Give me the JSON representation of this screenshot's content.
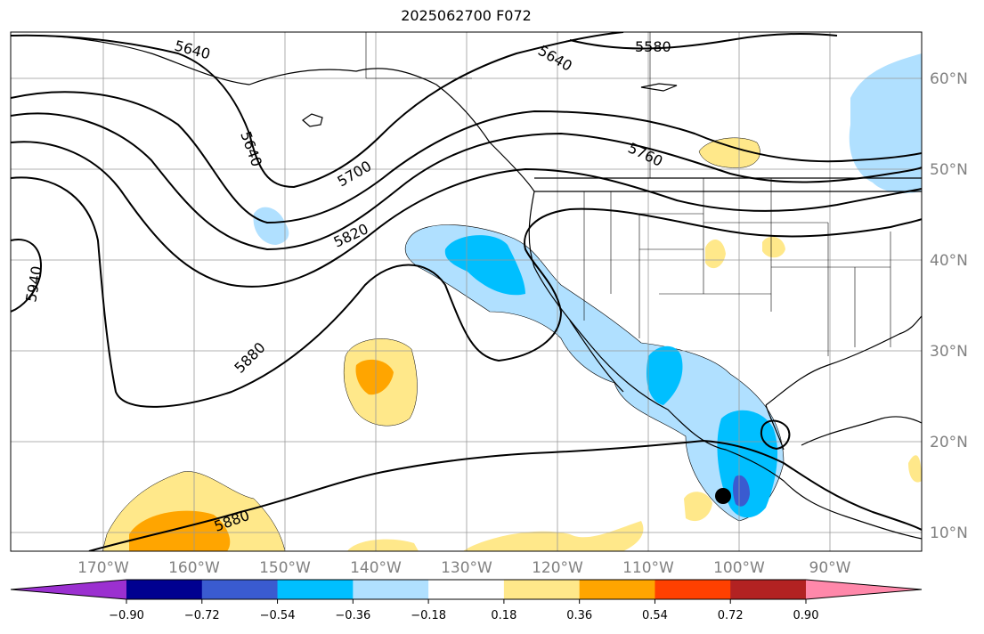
{
  "title": "2025062700 F072",
  "lon_labels": [
    "170°W",
    "160°W",
    "150°W",
    "140°W",
    "130°W",
    "120°W",
    "110°W",
    "100°W",
    "90°W"
  ],
  "lat_labels": [
    "60°N",
    "50°N",
    "40°N",
    "30°N",
    "20°N",
    "10°N"
  ],
  "contour_labels": [
    "5640",
    "5580",
    "5640",
    "5640",
    "5700",
    "5760",
    "5820",
    "5940",
    "5880",
    "5880"
  ],
  "colorbar": {
    "ticks": [
      "−0.90",
      "−0.72",
      "−0.54",
      "−0.36",
      "−0.18",
      "0.18",
      "0.36",
      "0.54",
      "0.72",
      "0.90"
    ],
    "colors": [
      "#9b30d0",
      "#000090",
      "#3a5bd0",
      "#00bfff",
      "#b0e0ff",
      "#ffffff",
      "#ffe88a",
      "#ffa500",
      "#ff4000",
      "#b22222",
      "#ff88aa"
    ]
  }
}
